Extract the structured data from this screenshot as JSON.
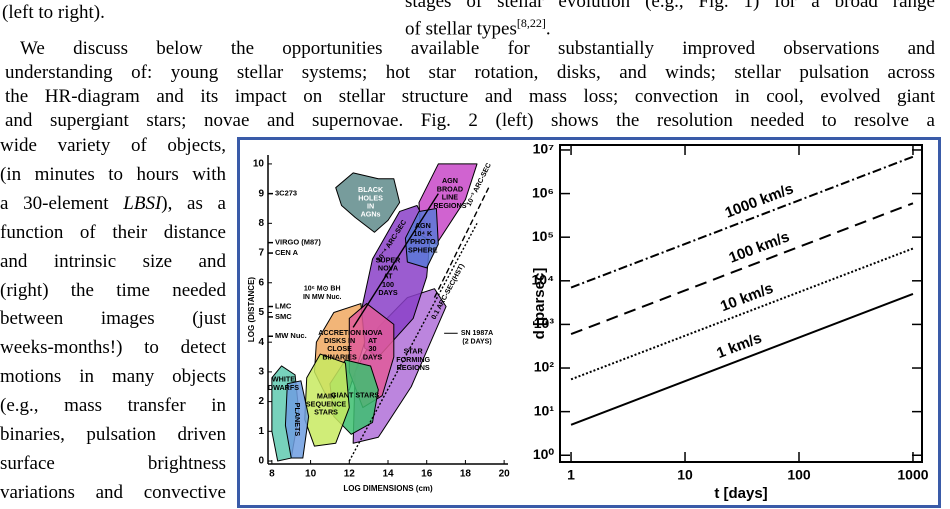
{
  "header": {
    "left": "(left to right).",
    "right": [
      "stages of stellar evolution (e.g., Fig. 1) for a broad range",
      "of stellar types"
    ],
    "citation": "[8,22]",
    "right_end": "."
  },
  "paragraph": [
    "We discuss below the opportunities available for substantially improved observations and",
    "understanding of: young stellar systems; hot star rotation, disks, and winds; stellar pulsation across",
    "the HR-diagram and its impact on stellar structure and mass loss; convection in cool, evolved giant",
    "and supergiant stars; novae and supernovae. Fig. 2 (left) shows the resolution needed to resolve a"
  ],
  "side_text": [
    "wide variety of objects,",
    "(in minutes to hours with",
    [
      "a 30-element ",
      "LBSI",
      "), as a"
    ],
    "function of their distance",
    "and intrinsic size and",
    "(right) the time needed",
    "between images (just",
    "weeks-months!) to detect",
    "motions in many objects",
    "(e.g., mass transfer in",
    "binaries, pulsation driven",
    "surface brightness",
    "variations and convective"
  ],
  "figure": {
    "left_chart": {
      "type": "region-map",
      "xlabel": "LOG DIMENSIONS (cm)",
      "ylabel": "LOG (DISTANCE)",
      "xlim": [
        7.8,
        20.2
      ],
      "ylim": [
        -0.1,
        10.3
      ],
      "xticks": [
        8,
        10,
        12,
        14,
        16,
        18,
        20
      ],
      "yticks": [
        0,
        1,
        2,
        3,
        4,
        5,
        6,
        7,
        8,
        9,
        10
      ],
      "reference_objects": [
        {
          "label": "3C273",
          "distance": 9
        },
        {
          "label": "VIRGO (M87)",
          "distance": 7.35
        },
        {
          "label": "CEN A",
          "distance": 7.0
        },
        {
          "label": "LMC",
          "distance": 5.2
        },
        {
          "label": "SMC",
          "distance": 4.85
        },
        {
          "label": "MW Nuc.",
          "distance": 4.2
        }
      ],
      "regions": [
        {
          "label": [
            "STAR",
            "FORMING",
            "REGIONS"
          ],
          "color": "#b070d8"
        },
        {
          "label": [
            "SUPER",
            "NOVA",
            "AT",
            "100",
            "DAYS"
          ],
          "color": "#8a40c8"
        },
        {
          "label": [
            "AGN",
            "BROAD",
            "LINE",
            "REGIONS"
          ],
          "color": "#c848c8"
        },
        {
          "label": [
            "AGN",
            "10⁴ K",
            "PHOTO",
            "SPHERE"
          ],
          "color": "#5a78d8"
        },
        {
          "label": [
            "BLACK",
            "HOLES",
            "IN",
            "AGNs"
          ],
          "color": "#5f8b8b"
        },
        {
          "label": [
            "ACCRETION",
            "DISKS IN",
            "CLOSE",
            "BINARIES"
          ],
          "color": "#f0a860"
        },
        {
          "label": [
            "NOVA",
            "AT",
            "30",
            "DAYS"
          ],
          "color": "#e05a9a"
        },
        {
          "label": [
            "GIANT STARS"
          ],
          "color": "#3cbf70"
        },
        {
          "label": [
            "MAIN",
            "SEQUENCE",
            "STARS"
          ],
          "color": "#c8ea60"
        },
        {
          "label": [
            "WHITE",
            "DWARFS"
          ],
          "color": "#5fcab0"
        },
        {
          "label": [
            "PLANETS"
          ],
          "color": "#6e9ee0"
        }
      ],
      "resolution_lines": [
        "10⁻⁴ ARC-SEC",
        "10⁻³ ARC-SEC",
        "0.1 ARC-SEC(HST)"
      ],
      "annotations": [
        [
          "10⁶ M⊙ BH",
          "IN MW Nuc."
        ],
        [
          "SN 1987A",
          "(2 DAYS)"
        ]
      ]
    },
    "right_chart": {
      "type": "line",
      "xlabel": "t [days]",
      "ylabel": "d [parsec]",
      "xscale": "log",
      "yscale": "log",
      "xlim": [
        0.8,
        1200
      ],
      "ylim": [
        0.7,
        13000000
      ],
      "xticks": [
        1,
        10,
        100,
        1000
      ],
      "yticks": [
        {
          "value": 1,
          "label": "10⁰"
        },
        {
          "value": 10,
          "label": "10¹"
        },
        {
          "value": 100,
          "label": "10²"
        },
        {
          "value": 1000,
          "label": "10³"
        },
        {
          "value": 10000,
          "label": "10⁴"
        },
        {
          "value": 100000,
          "label": "10⁵"
        },
        {
          "value": 1000000,
          "label": "10⁶"
        },
        {
          "value": 10000000,
          "label": "10⁷"
        }
      ],
      "x": [
        1,
        1000
      ],
      "series": [
        {
          "name": "1000 km/s",
          "color": "#000000",
          "dash": "dashdot",
          "values": [
            7000,
            7000000
          ]
        },
        {
          "name": "100 km/s",
          "color": "#000000",
          "dash": "dashed",
          "values": [
            600,
            600000
          ]
        },
        {
          "name": "10 km/s",
          "color": "#000000",
          "dash": "dotted",
          "values": [
            55,
            55000
          ]
        },
        {
          "name": "1 km/s",
          "color": "#000000",
          "dash": "solid",
          "values": [
            5,
            5000
          ]
        }
      ]
    }
  }
}
